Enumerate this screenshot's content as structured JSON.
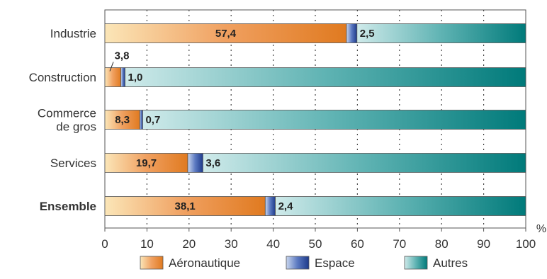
{
  "chart_data": {
    "type": "bar",
    "orientation": "horizontal",
    "stacked": true,
    "categories": [
      {
        "label": [
          "Industrie"
        ],
        "highlight": false
      },
      {
        "label": [
          "Construction"
        ],
        "highlight": false
      },
      {
        "label": [
          "Commerce",
          "de gros"
        ],
        "highlight": false
      },
      {
        "label": [
          "Services"
        ],
        "highlight": false
      },
      {
        "label": [
          "Ensemble"
        ],
        "highlight": true
      }
    ],
    "series": [
      {
        "name": "Aéronautique",
        "values": [
          57.4,
          3.8,
          8.3,
          19.7,
          38.1
        ],
        "labels": [
          "57,4",
          "3,8",
          "8,3",
          "19,7",
          "38,1"
        ],
        "colors": [
          "#fbe6b8",
          "#f0a060",
          "#e07a20"
        ]
      },
      {
        "name": "Espace",
        "values": [
          2.5,
          1.0,
          0.7,
          3.6,
          2.4
        ],
        "labels": [
          "2,5",
          "1,0",
          "0,7",
          "3,6",
          "2,4"
        ],
        "colors": [
          "#c9d6ee",
          "#5a78c0",
          "#1e3a8a"
        ]
      },
      {
        "name": "Autres",
        "values": [
          40.1,
          95.2,
          91.0,
          76.7,
          59.5
        ],
        "labels": null,
        "colors": [
          "#cfeaea",
          "#5fb3b3",
          "#007a7a"
        ]
      }
    ],
    "xlim": [
      0,
      100
    ],
    "xticks": [
      "0",
      "10",
      "20",
      "30",
      "40",
      "50",
      "60",
      "70",
      "80",
      "90",
      "100"
    ],
    "unit": "%",
    "grid": "vertical-dotted",
    "legend": "bottom",
    "highlight_color": "#e0205a"
  }
}
